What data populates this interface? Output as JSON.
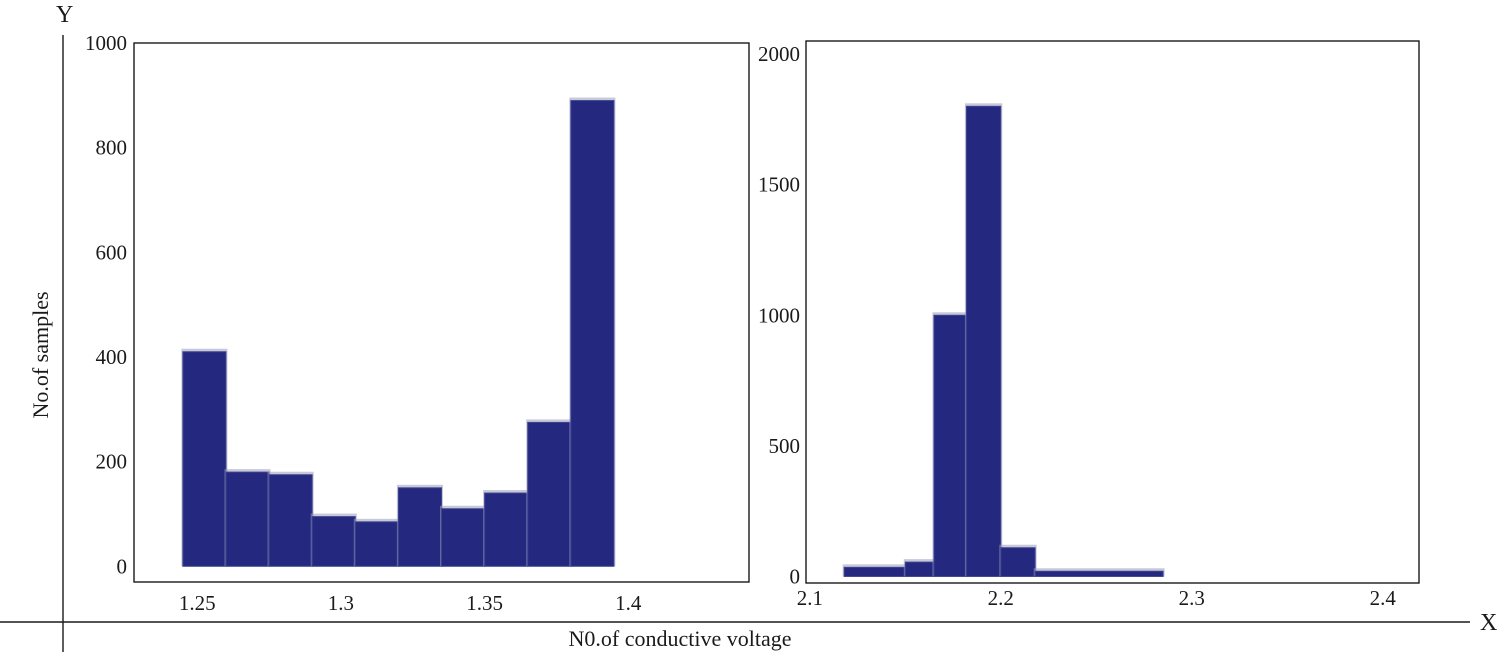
{
  "axes": {
    "x_letter": "X",
    "y_letter": "Y",
    "xlabel": "N0.of conductive voltage",
    "ylabel": "No.of samples"
  },
  "colors": {
    "bar_fill": "#24297f",
    "bar_shadow": "#9a9cb8",
    "frame": "#1a1a1a"
  },
  "chart_data": [
    {
      "type": "bar",
      "title": "",
      "xlim": [
        1.228,
        1.442
      ],
      "ylim": [
        -30,
        1000
      ],
      "xticks": [
        {
          "value": 1.25,
          "label": "1.25"
        },
        {
          "value": 1.3,
          "label": "1.3"
        },
        {
          "value": 1.35,
          "label": "1.35"
        },
        {
          "value": 1.4,
          "label": "1.4"
        }
      ],
      "yticks": [
        {
          "value": 0,
          "label": "0"
        },
        {
          "value": 200,
          "label": "200"
        },
        {
          "value": 400,
          "label": "400"
        },
        {
          "value": 600,
          "label": "600"
        },
        {
          "value": 800,
          "label": "800"
        },
        {
          "value": 1000,
          "label": "1000"
        }
      ],
      "bins": [
        {
          "x0": 1.245,
          "x1": 1.26,
          "value": 410
        },
        {
          "x0": 1.26,
          "x1": 1.275,
          "value": 180
        },
        {
          "x0": 1.275,
          "x1": 1.29,
          "value": 175
        },
        {
          "x0": 1.29,
          "x1": 1.305,
          "value": 95
        },
        {
          "x0": 1.305,
          "x1": 1.32,
          "value": 85
        },
        {
          "x0": 1.32,
          "x1": 1.335,
          "value": 150
        },
        {
          "x0": 1.335,
          "x1": 1.35,
          "value": 110
        },
        {
          "x0": 1.35,
          "x1": 1.365,
          "value": 140
        },
        {
          "x0": 1.365,
          "x1": 1.38,
          "value": 275
        },
        {
          "x0": 1.38,
          "x1": 1.395,
          "value": 890
        }
      ]
    },
    {
      "type": "bar",
      "title": "",
      "xlim": [
        2.098,
        2.419
      ],
      "ylim": [
        -25,
        2050
      ],
      "xticks": [
        {
          "value": 2.1,
          "label": "2.1"
        },
        {
          "value": 2.2,
          "label": "2.2"
        },
        {
          "value": 2.3,
          "label": "2.3"
        },
        {
          "value": 2.4,
          "label": "2.4"
        }
      ],
      "yticks": [
        {
          "value": 0,
          "label": "0"
        },
        {
          "value": 500,
          "label": "500"
        },
        {
          "value": 1000,
          "label": "1000"
        },
        {
          "value": 1500,
          "label": "1500"
        },
        {
          "value": 2000,
          "label": "2000"
        }
      ],
      "bins": [
        {
          "x0": 2.118,
          "x1": 2.15,
          "value": 35
        },
        {
          "x0": 2.15,
          "x1": 2.165,
          "value": 55
        },
        {
          "x0": 2.165,
          "x1": 2.182,
          "value": 1000
        },
        {
          "x0": 2.182,
          "x1": 2.2,
          "value": 1800
        },
        {
          "x0": 2.2,
          "x1": 2.218,
          "value": 110
        },
        {
          "x0": 2.218,
          "x1": 2.285,
          "value": 20
        }
      ]
    }
  ]
}
